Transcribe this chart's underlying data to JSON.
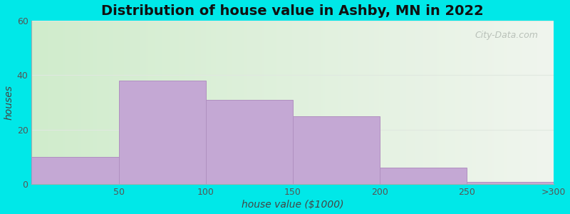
{
  "title": "Distribution of house value in Ashby, MN in 2022",
  "xlabel": "house value ($1000)",
  "ylabel": "houses",
  "tick_labels": [
    "50",
    "100",
    "150",
    "200",
    "250",
    ">300"
  ],
  "values": [
    10,
    38,
    31,
    25,
    6,
    1
  ],
  "bar_color": "#c4a8d4",
  "bar_edge_color": "#b090c0",
  "ylim": [
    0,
    60
  ],
  "yticks": [
    0,
    20,
    40,
    60
  ],
  "figure_bg": "#00e8e8",
  "axes_bg_left_color": "#d0eccc",
  "axes_bg_right_color": "#f0f5ee",
  "title_fontsize": 14,
  "axis_label_fontsize": 10,
  "tick_fontsize": 9,
  "watermark_text": "City-Data.com",
  "grid_color": "#e0e8e0",
  "bar_width": 1.0
}
